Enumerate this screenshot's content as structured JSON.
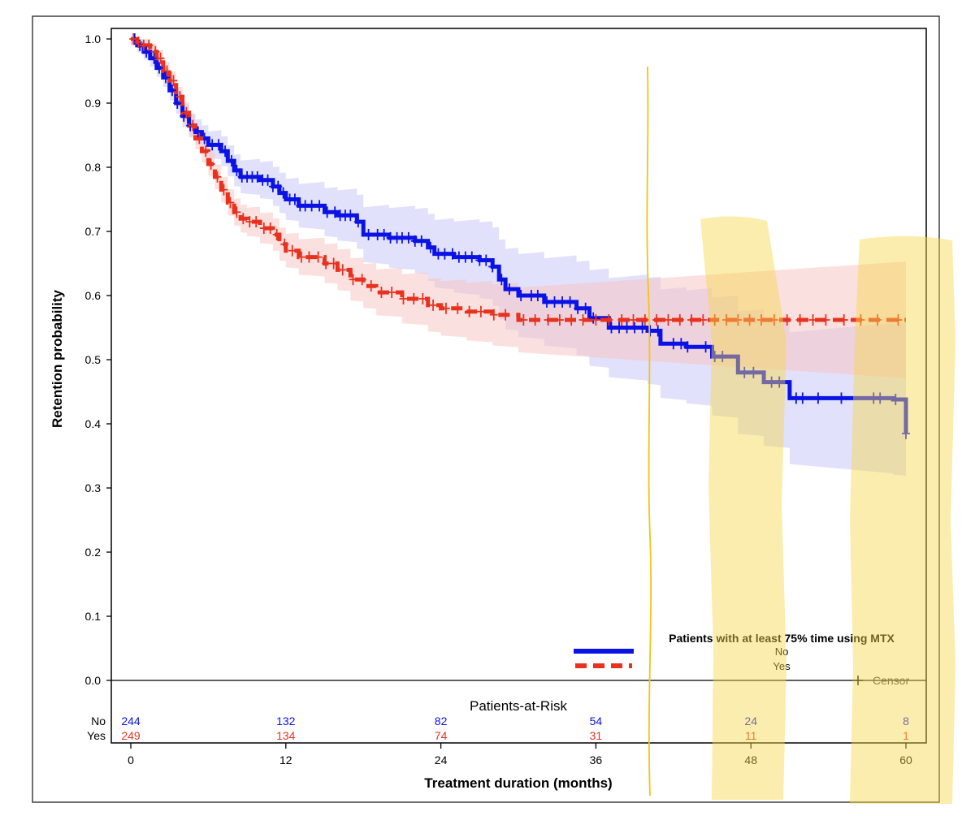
{
  "chart_data": {
    "type": "line",
    "subtype": "kaplan-meier",
    "xlabel": "Treatment duration (months)",
    "ylabel": "Retention probability",
    "xlim": [
      0,
      60
    ],
    "ylim": [
      0,
      1
    ],
    "x_ticks": [
      "0",
      "12",
      "24",
      "36",
      "48",
      "60"
    ],
    "y_ticks": [
      "0.0",
      "0.1",
      "0.2",
      "0.3",
      "0.4",
      "0.5",
      "0.6",
      "0.7",
      "0.8",
      "0.9",
      "1.0"
    ],
    "legend": {
      "title": "Patients with at least 75% time using MTX",
      "position": "bottom-right",
      "censor_label": "Censor"
    },
    "series": [
      {
        "name": "No",
        "color": "#0a12e6",
        "band_color": "#c9c9f7",
        "style": "solid",
        "steps": [
          [
            0,
            1.0
          ],
          [
            0.5,
            0.99
          ],
          [
            1,
            0.98
          ],
          [
            1.5,
            0.97
          ],
          [
            2,
            0.955
          ],
          [
            2.5,
            0.94
          ],
          [
            3,
            0.92
          ],
          [
            3.5,
            0.9
          ],
          [
            4,
            0.88
          ],
          [
            4.5,
            0.865
          ],
          [
            5,
            0.855
          ],
          [
            5.5,
            0.845
          ],
          [
            6,
            0.835
          ],
          [
            7,
            0.825
          ],
          [
            7.5,
            0.81
          ],
          [
            8,
            0.795
          ],
          [
            8.5,
            0.785
          ],
          [
            10,
            0.78
          ],
          [
            11,
            0.77
          ],
          [
            11.5,
            0.76
          ],
          [
            12,
            0.75
          ],
          [
            13,
            0.74
          ],
          [
            15,
            0.73
          ],
          [
            16,
            0.725
          ],
          [
            17.5,
            0.715
          ],
          [
            18,
            0.695
          ],
          [
            20,
            0.69
          ],
          [
            22,
            0.685
          ],
          [
            23,
            0.675
          ],
          [
            23.5,
            0.665
          ],
          [
            25,
            0.66
          ],
          [
            27,
            0.655
          ],
          [
            28,
            0.645
          ],
          [
            28.5,
            0.625
          ],
          [
            29,
            0.61
          ],
          [
            30,
            0.6
          ],
          [
            32,
            0.59
          ],
          [
            34.5,
            0.58
          ],
          [
            35.5,
            0.565
          ],
          [
            37,
            0.55
          ],
          [
            40,
            0.545
          ],
          [
            41,
            0.525
          ],
          [
            43,
            0.52
          ],
          [
            45,
            0.505
          ],
          [
            47,
            0.48
          ],
          [
            49,
            0.465
          ],
          [
            51,
            0.44
          ],
          [
            56,
            0.44
          ],
          [
            59,
            0.438
          ],
          [
            60,
            0.385
          ]
        ],
        "censor_marks": [
          0.3,
          0.7,
          1.2,
          1.8,
          2.2,
          2.7,
          3.2,
          3.6,
          4.1,
          4.6,
          5.2,
          5.7,
          6.3,
          6.8,
          7.3,
          7.8,
          8.2,
          8.6,
          9,
          9.4,
          9.8,
          10.2,
          10.6,
          11,
          11.4,
          11.8,
          12.3,
          12.7,
          13.1,
          13.5,
          14,
          14.6,
          15.2,
          15.8,
          16.2,
          16.6,
          17,
          17.6,
          18.4,
          19.1,
          19.6,
          20.1,
          20.6,
          21,
          21.5,
          22,
          22.5,
          23.2,
          23.8,
          24.3,
          24.9,
          25.4,
          25.9,
          26.4,
          27,
          27.5,
          28,
          28.7,
          29.3,
          30.2,
          31,
          31.5,
          32.2,
          32.8,
          33.4,
          34,
          34.6,
          35.2,
          35.8,
          37.2,
          37.8,
          38.4,
          39,
          39.6,
          40.2,
          40.8,
          42,
          42.6,
          43.1,
          44.5,
          45.2,
          45.8,
          47.5,
          48.2,
          49.6,
          50.2,
          51.5,
          52,
          53.2,
          55,
          57.5,
          58,
          59.2,
          60
        ]
      },
      {
        "name": "Yes",
        "color": "#e8321e",
        "band_color": "#f7c7c7",
        "style": "dashed",
        "steps": [
          [
            0,
            1.0
          ],
          [
            0.5,
            0.995
          ],
          [
            1,
            0.99
          ],
          [
            1.5,
            0.98
          ],
          [
            2,
            0.97
          ],
          [
            2.5,
            0.95
          ],
          [
            3,
            0.935
          ],
          [
            3.5,
            0.91
          ],
          [
            4,
            0.885
          ],
          [
            4.5,
            0.865
          ],
          [
            5,
            0.845
          ],
          [
            5.5,
            0.825
          ],
          [
            6,
            0.805
          ],
          [
            6.5,
            0.785
          ],
          [
            7,
            0.765
          ],
          [
            7.5,
            0.745
          ],
          [
            8,
            0.73
          ],
          [
            8.5,
            0.72
          ],
          [
            9,
            0.715
          ],
          [
            10,
            0.705
          ],
          [
            11,
            0.695
          ],
          [
            11.5,
            0.68
          ],
          [
            12,
            0.67
          ],
          [
            13,
            0.66
          ],
          [
            15,
            0.65
          ],
          [
            16,
            0.64
          ],
          [
            17,
            0.625
          ],
          [
            18,
            0.615
          ],
          [
            19,
            0.605
          ],
          [
            21,
            0.595
          ],
          [
            23,
            0.585
          ],
          [
            24,
            0.58
          ],
          [
            26,
            0.575
          ],
          [
            28,
            0.57
          ],
          [
            30,
            0.562
          ],
          [
            60,
            0.562
          ]
        ],
        "censor_marks": [
          0.2,
          0.6,
          1,
          1.4,
          1.9,
          2.3,
          2.8,
          3.3,
          3.8,
          4.3,
          4.8,
          5.3,
          5.8,
          6.2,
          6.7,
          7.2,
          7.7,
          8.2,
          8.7,
          9.2,
          9.7,
          10.3,
          10.8,
          11.3,
          11.9,
          12.5,
          13.2,
          13.8,
          14.5,
          15.1,
          15.7,
          16.4,
          17.2,
          17.9,
          18.6,
          19.4,
          20.2,
          21.1,
          21.9,
          22.6,
          23.4,
          24.4,
          25.3,
          26.2,
          27.1,
          28.1,
          29,
          30.4,
          31.3,
          32.3,
          33.2,
          34.1,
          35,
          36,
          37,
          38,
          38.9,
          39.8,
          40.7,
          41.6,
          42.5,
          43.4,
          44.3,
          45.2,
          46.1,
          47,
          47.9,
          48.8,
          49.8,
          50.8,
          51.8,
          52.8,
          53.8,
          55.2,
          56.5,
          57.8,
          59.4
        ]
      }
    ],
    "at_risk": {
      "title": "Patients-at-Risk",
      "times": [
        0,
        12,
        24,
        36,
        48,
        60
      ],
      "rows": [
        {
          "label": "No",
          "counts": [
            "244",
            "132",
            "82",
            "54",
            "24",
            "8"
          ]
        },
        {
          "label": "Yes",
          "counts": [
            "249",
            "134",
            "74",
            "31",
            "11",
            "1"
          ]
        }
      ]
    }
  }
}
